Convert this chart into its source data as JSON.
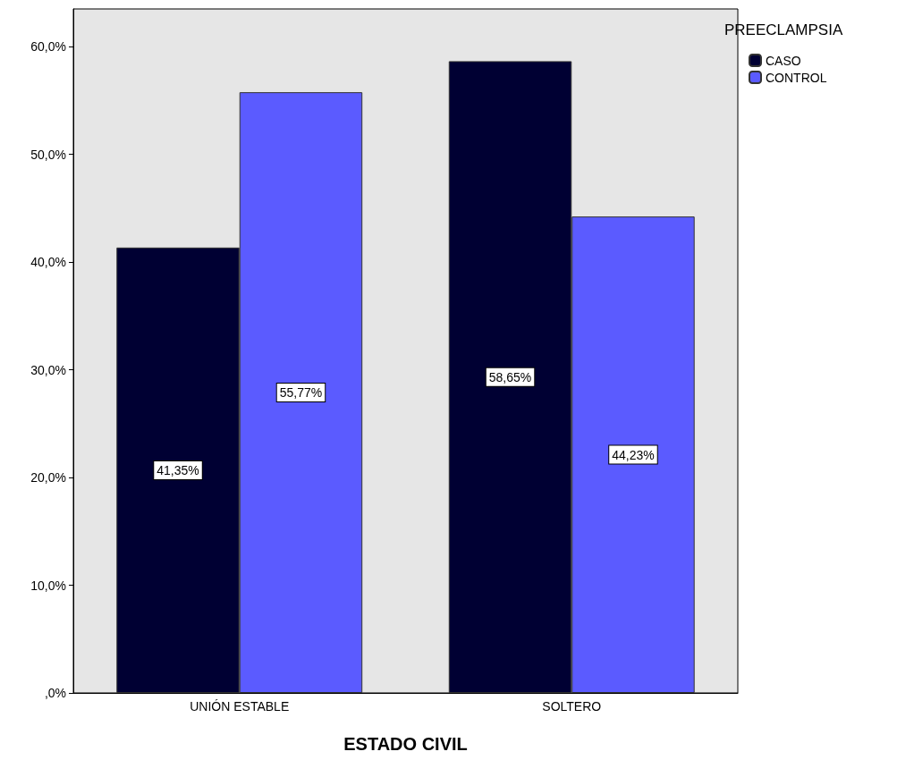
{
  "chart_data": {
    "type": "bar",
    "xlabel": "ESTADO CIVIL",
    "legend_title": "PREECLAMPSIA",
    "categories": [
      "UNIÓN ESTABLE",
      "SOLTERO"
    ],
    "series": [
      {
        "name": "CASO",
        "color": "#000033",
        "values": [
          41.35,
          58.65
        ],
        "value_labels": [
          "41,35%",
          "58,65%"
        ]
      },
      {
        "name": "CONTROL",
        "color": "#5b5bff",
        "values": [
          55.77,
          44.23
        ],
        "value_labels": [
          "55,77%",
          "44,23%"
        ]
      }
    ],
    "ylim": [
      0,
      63.5
    ],
    "yticks": [
      {
        "value": 0,
        "label": ",0%"
      },
      {
        "value": 10,
        "label": "10,0%"
      },
      {
        "value": 20,
        "label": "20,0%"
      },
      {
        "value": 30,
        "label": "30,0%"
      },
      {
        "value": 40,
        "label": "40,0%"
      },
      {
        "value": 50,
        "label": "50,0%"
      },
      {
        "value": 60,
        "label": "60,0%"
      }
    ],
    "grid": false,
    "legend": "top right"
  }
}
